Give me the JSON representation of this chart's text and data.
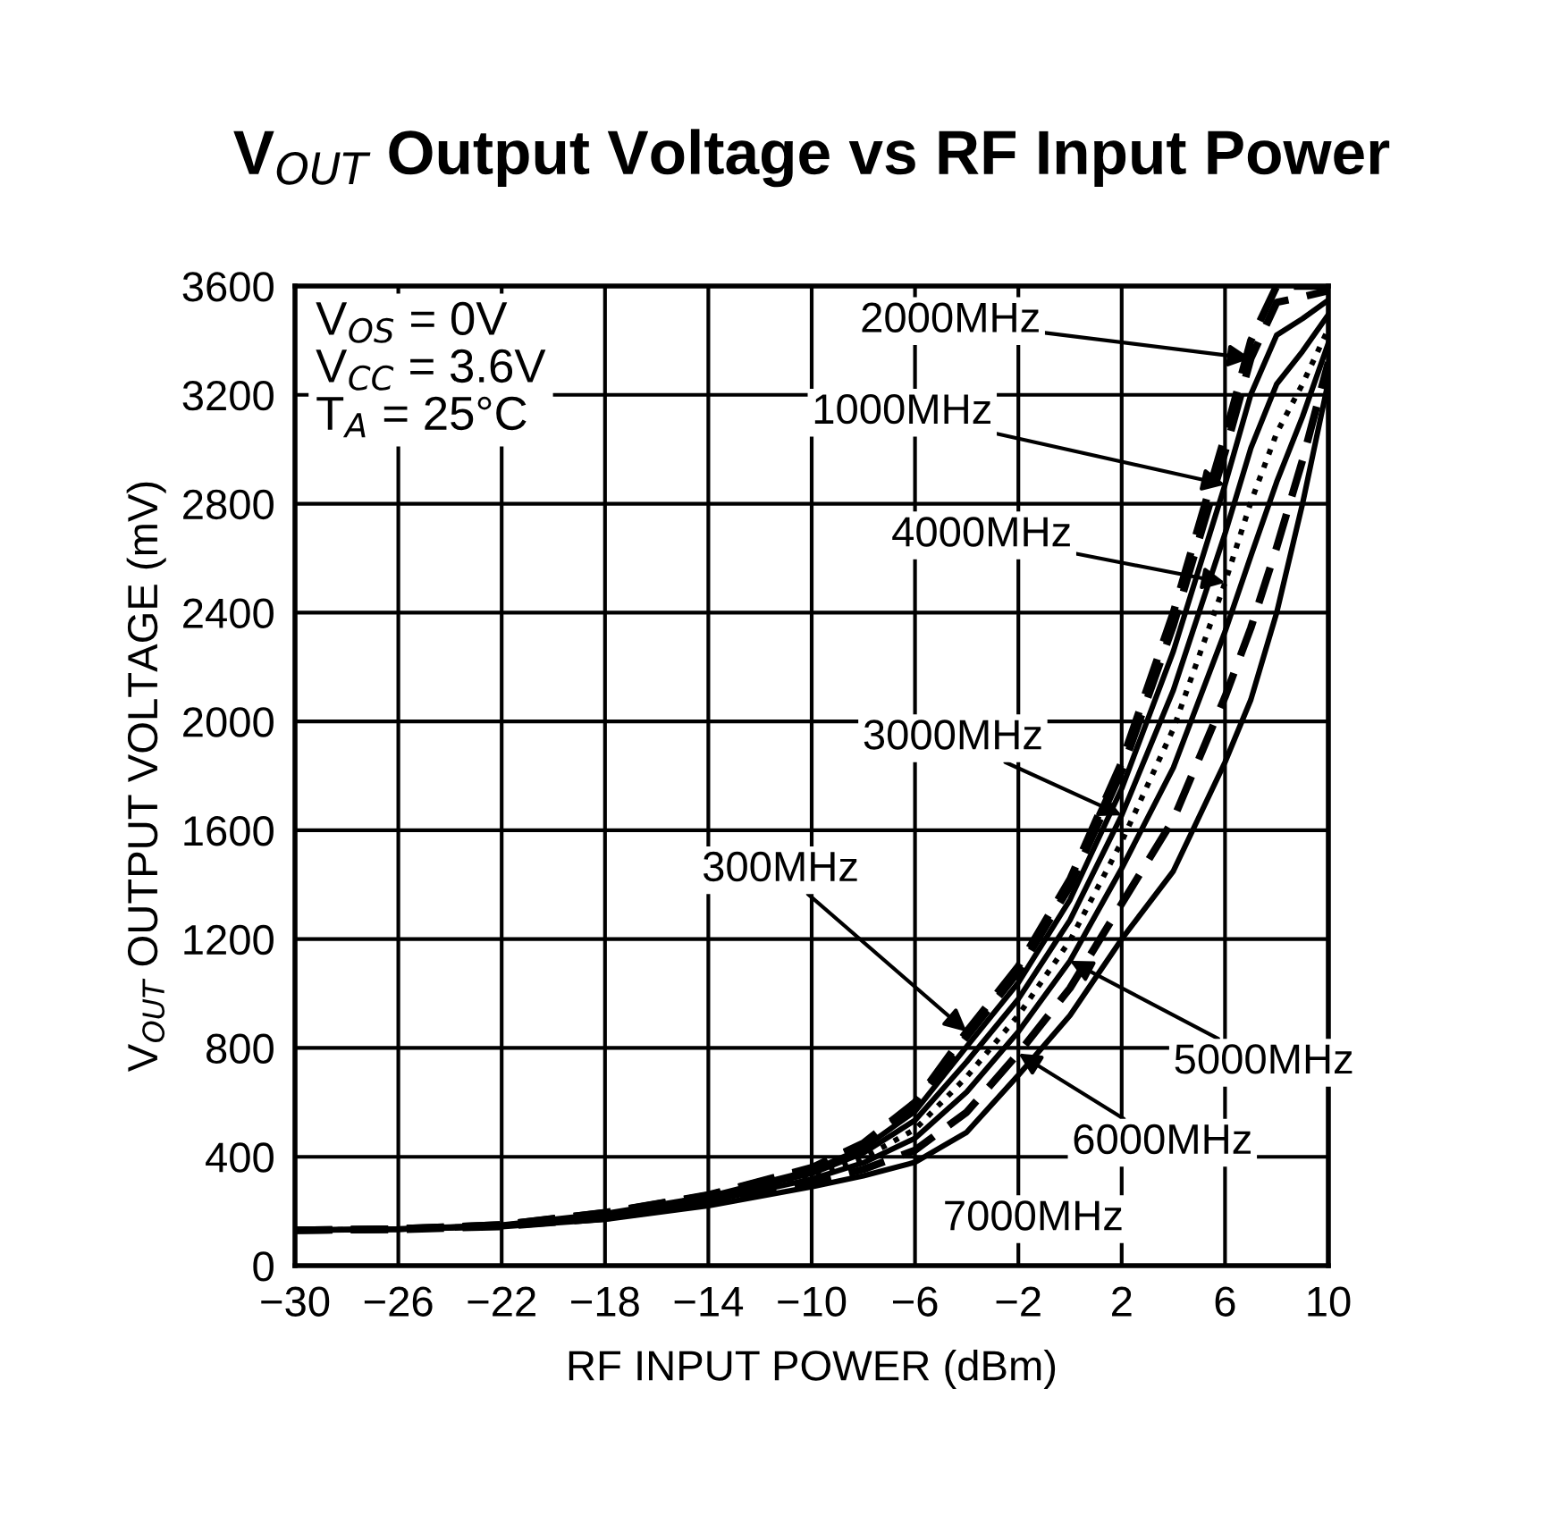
{
  "chart_data": {
    "type": "line",
    "title": "V$_{OUT}$ Output Voltage vs RF Input Power",
    "xlabel": "RF INPUT POWER (dBm)",
    "ylabel": "V$_{OUT}$ OUTPUT VOLTAGE (mV)",
    "annotations": [
      "V$_{OS}$ = 0V",
      "V$_{CC}$ = 3.6V",
      "T$_{A}$ = 25°C",
      {
        "text": "300MHz",
        "x": -4,
        "y": 860
      },
      {
        "text": "2000MHz",
        "x": 7,
        "y": 3334
      },
      {
        "text": "1000MHz",
        "x": 6,
        "y": 2870
      },
      {
        "text": "3000MHz",
        "x": 2,
        "y": 1655
      },
      {
        "text": "4000MHz",
        "x": 6,
        "y": 2510
      },
      {
        "text": "5000MHz",
        "x": 0,
        "y": 1120
      },
      {
        "text": "6000MHz",
        "x": -2,
        "y": 780
      },
      {
        "text": "7000MHz",
        "x": -2,
        "y": 700
      }
    ],
    "x": [
      -30,
      -26,
      -22,
      -18,
      -14,
      -10,
      -8,
      -6,
      -4,
      -2,
      0,
      2,
      4,
      6,
      7,
      8,
      9,
      10
    ],
    "series": [
      {
        "color": "#000000",
        "line_style": "dashed",
        "values": [
          130,
          135,
          150,
          195,
          260,
          360,
          450,
          600,
          860,
          1100,
          1420,
          1850,
          2400,
          3050,
          3400,
          3600,
          3600,
          3600
        ]
      },
      {
        "color": "#000000",
        "line_style": "dashed",
        "values": [
          130,
          135,
          150,
          194,
          258,
          357,
          444,
          589,
          842,
          1080,
          1395,
          1818,
          2353,
          2990,
          3334,
          3540,
          3560,
          3583
        ]
      },
      {
        "color": "#000000",
        "line_style": "solid",
        "values": [
          130,
          135,
          149,
          191,
          254,
          350,
          432,
          567,
          805,
          1040,
          1345,
          1753,
          2258,
          2870,
          3202,
          3420,
          3480,
          3548
        ]
      },
      {
        "color": "#000000",
        "line_style": "solid",
        "values": [
          130,
          134,
          148,
          188,
          248,
          339,
          414,
          534,
          749,
          980,
          1270,
          1655,
          2115,
          2690,
          3004,
          3240,
          3360,
          3495
        ]
      },
      {
        "color": "#000000",
        "line_style": "dotted",
        "values": [
          130,
          134,
          147,
          184,
          242,
          329,
          396,
          501,
          694,
          920,
          1195,
          1558,
          1973,
          2510,
          2806,
          3060,
          3240,
          3443
        ]
      },
      {
        "color": "#000000",
        "line_style": "solid",
        "values": [
          130,
          134,
          146,
          180,
          236,
          318,
          378,
          468,
          638,
          860,
          1120,
          1460,
          1830,
          2330,
          2608,
          2880,
          3120,
          3390
        ]
      },
      {
        "color": "#000000",
        "line_style": "dashed",
        "values": [
          130,
          133,
          144,
          175,
          228,
          304,
          354,
          424,
          564,
          780,
          1020,
          1330,
          1640,
          2090,
          2344,
          2640,
          2960,
          3320
        ]
      },
      {
        "color": "#000000",
        "line_style": "solid",
        "values": [
          130,
          133,
          143,
          170,
          220,
          290,
          330,
          380,
          490,
          700,
          920,
          1200,
          1450,
          1850,
          2080,
          2400,
          2800,
          3250
        ]
      }
    ],
    "xlim": [
      -30,
      10
    ],
    "xticks": [
      {
        "value": -30,
        "label": "−30"
      },
      {
        "value": -26,
        "label": "−26"
      },
      {
        "value": -22,
        "label": "−22"
      },
      {
        "value": -18,
        "label": "−18"
      },
      {
        "value": -14,
        "label": "−14"
      },
      {
        "value": -10,
        "label": "−10"
      },
      {
        "value": -6,
        "label": "−6"
      },
      {
        "value": -2,
        "label": "−2"
      },
      2,
      6,
      10
    ],
    "ylim": [
      0,
      3600
    ],
    "yticks": [
      0,
      400,
      800,
      1200,
      1600,
      2000,
      2400,
      2800,
      3200,
      3600
    ],
    "grid": true
  }
}
